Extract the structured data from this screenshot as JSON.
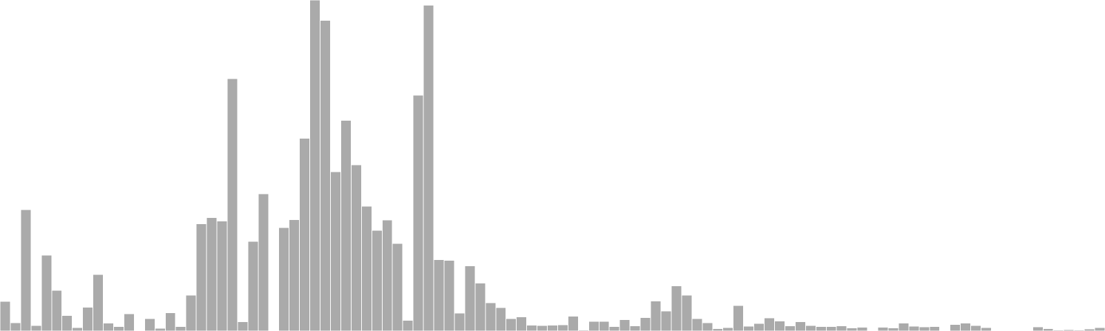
{
  "chart_data": {
    "type": "bar",
    "bar_color": "#aaaaaa",
    "background": "#ffffff",
    "grid": false,
    "legend": "none",
    "axes_visible": false,
    "ylim": [
      0,
      1000
    ],
    "values": [
      90,
      25,
      367,
      17,
      229,
      123,
      47,
      10,
      72,
      171,
      24,
      14,
      52,
      0,
      37,
      8,
      55,
      14,
      108,
      324,
      343,
      332,
      763,
      28,
      271,
      415,
      0,
      313,
      336,
      582,
      1000,
      939,
      481,
      636,
      502,
      377,
      304,
      335,
      265,
      32,
      713,
      984,
      216,
      214,
      54,
      197,
      145,
      85,
      71,
      38,
      43,
      18,
      17,
      18,
      19,
      45,
      3,
      29,
      29,
      14,
      34,
      16,
      41,
      91,
      60,
      136,
      108,
      38,
      25,
      7,
      10,
      77,
      15,
      23,
      40,
      30,
      16,
      28,
      17,
      14,
      14,
      16,
      9,
      11,
      2,
      11,
      9,
      24,
      15,
      12,
      14,
      2,
      20,
      24,
      17,
      10,
      1,
      1,
      1,
      1,
      13,
      7,
      3,
      4,
      3,
      6,
      10
    ]
  }
}
